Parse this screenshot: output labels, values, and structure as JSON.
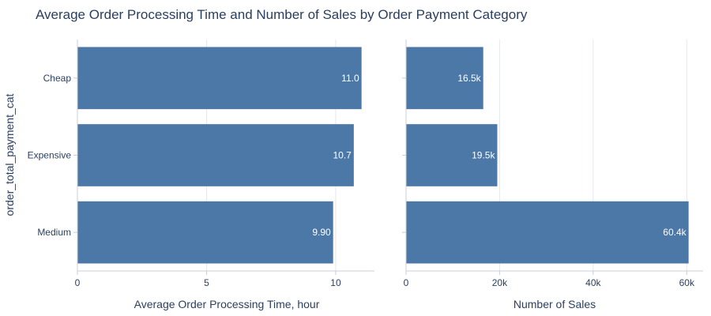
{
  "title": "Average Order Processing Time and Number of Sales by Order Payment Category",
  "chart_data": [
    {
      "type": "bar",
      "orientation": "horizontal",
      "categories": [
        "Cheap",
        "Expensive",
        "Medium"
      ],
      "values": [
        11.0,
        10.7,
        9.9
      ],
      "value_labels": [
        "11.0",
        "10.7",
        "9.90"
      ],
      "xlabel": "Average Order Processing Time, hour",
      "ylabel": "order_total_payment_cat",
      "xlim": [
        0,
        11.5
      ],
      "xticks": [
        0,
        5,
        10
      ],
      "xtick_labels": [
        "0",
        "5",
        "10"
      ],
      "grid": true,
      "bar_color": "#4c78a8"
    },
    {
      "type": "bar",
      "orientation": "horizontal",
      "categories": [
        "Cheap",
        "Expensive",
        "Medium"
      ],
      "values": [
        16500,
        19500,
        60400
      ],
      "value_labels": [
        "16.5k",
        "19.5k",
        "60.4k"
      ],
      "xlabel": "Number of Sales",
      "xlim": [
        0,
        63500
      ],
      "xticks": [
        0,
        20000,
        40000,
        60000
      ],
      "xtick_labels": [
        "0",
        "20k",
        "40k",
        "60k"
      ],
      "grid": true,
      "bar_color": "#4c78a8"
    }
  ]
}
